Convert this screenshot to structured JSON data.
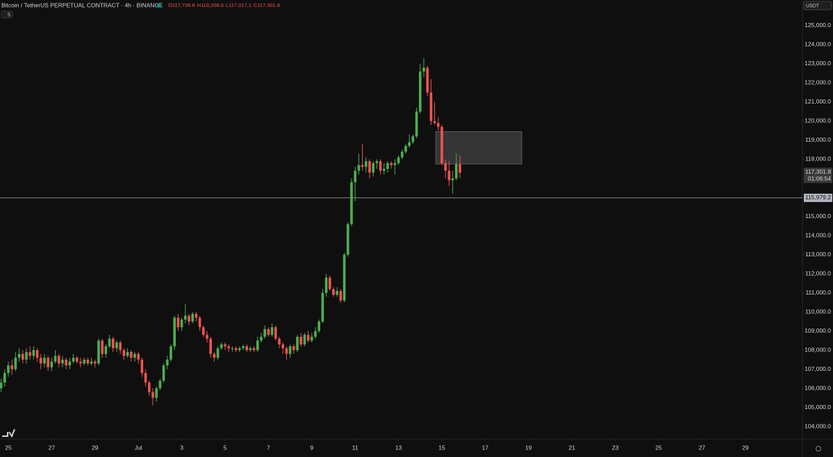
{
  "chart_data": {
    "type": "candlestick",
    "title": "Bitcoin / TetherUS PERPETUAL CONTRACT · 4h · BINANCE",
    "legend_values": [
      {
        "value": 117738.6,
        "label": "O117,738.6"
      },
      {
        "value": 118208.6,
        "label": "H118,208.6"
      },
      {
        "value": 117017.1,
        "label": "L117,017.1"
      },
      {
        "value": 117301.8,
        "label": "C117,301.8"
      }
    ],
    "indicator_count": 5,
    "currency": "USDT",
    "up_color": "#4caf50",
    "down_color": "#ef5350",
    "ylim": [
      103345,
      126346
    ],
    "xlim": [
      -0.3,
      221.8
    ],
    "yticks": [
      {
        "value": 104000,
        "label": "104,000.0"
      },
      {
        "value": 105000,
        "label": "105,000.0"
      },
      {
        "value": 106000,
        "label": "106,000.0"
      },
      {
        "value": 107000,
        "label": "107,000.0"
      },
      {
        "value": 108000,
        "label": "108,000.0"
      },
      {
        "value": 109000,
        "label": "109,000.0"
      },
      {
        "value": 110000,
        "label": "110,000.0"
      },
      {
        "value": 111000,
        "label": "111,000.0"
      },
      {
        "value": 112000,
        "label": "112,000.0"
      },
      {
        "value": 113000,
        "label": "113,000.0"
      },
      {
        "value": 114000,
        "label": "114,000.0"
      },
      {
        "value": 115000,
        "label": "115,000.0"
      },
      {
        "value": 116000,
        "label": "116,000.0"
      },
      {
        "value": 117000,
        "label": "117,000.0"
      },
      {
        "value": 118000,
        "label": "118,000.0"
      },
      {
        "value": 119000,
        "label": "119,000.0"
      },
      {
        "value": 120000,
        "label": "120,000.0"
      },
      {
        "value": 121000,
        "label": "121,000.0"
      },
      {
        "value": 122000,
        "label": "122,000.0"
      },
      {
        "value": 123000,
        "label": "123,000.0"
      },
      {
        "value": 124000,
        "label": "124,000.0"
      },
      {
        "value": 125000,
        "label": "125,000.0"
      }
    ],
    "xticks": [
      {
        "value": 2,
        "label": "25"
      },
      {
        "value": 14,
        "label": "27"
      },
      {
        "value": 26,
        "label": "29"
      },
      {
        "value": 38,
        "label": "Jul"
      },
      {
        "value": 50,
        "label": "3"
      },
      {
        "value": 62,
        "label": "5"
      },
      {
        "value": 74,
        "label": "7"
      },
      {
        "value": 86,
        "label": "9"
      },
      {
        "value": 98,
        "label": "11"
      },
      {
        "value": 110,
        "label": "13"
      },
      {
        "value": 122,
        "label": "15"
      },
      {
        "value": 134,
        "label": "17"
      },
      {
        "value": 146,
        "label": "19"
      },
      {
        "value": 158,
        "label": "21"
      },
      {
        "value": 170,
        "label": "23"
      },
      {
        "value": 182,
        "label": "25"
      },
      {
        "value": 194,
        "label": "27"
      },
      {
        "value": 206,
        "label": "29"
      }
    ],
    "last_price": {
      "value": 117301.8,
      "label": "117,301.8"
    },
    "countdown": "01:06:54",
    "hline": {
      "value": 115979.2,
      "label": "115,979.2"
    },
    "zone": {
      "y": [
        117750,
        119450
      ],
      "x": [
        120.3,
        144.1
      ]
    },
    "ohlc": [
      [
        106000,
        106500,
        105800,
        106300
      ],
      [
        106300,
        107000,
        106100,
        106800
      ],
      [
        106800,
        107400,
        106600,
        107200
      ],
      [
        107200,
        107500,
        106700,
        107000
      ],
      [
        107000,
        107900,
        106900,
        107600
      ],
      [
        107600,
        108100,
        107400,
        107800
      ],
      [
        107800,
        108000,
        107300,
        107500
      ],
      [
        107500,
        108100,
        107300,
        107900
      ],
      [
        107900,
        108200,
        107500,
        107700
      ],
      [
        107700,
        108200,
        107500,
        108000
      ],
      [
        108000,
        108100,
        107400,
        107600
      ],
      [
        107600,
        107800,
        107000,
        107300
      ],
      [
        107300,
        107800,
        107100,
        107600
      ],
      [
        107600,
        107700,
        106900,
        107100
      ],
      [
        107100,
        107600,
        106900,
        107400
      ],
      [
        107400,
        108000,
        107300,
        107700
      ],
      [
        107700,
        107800,
        107100,
        107300
      ],
      [
        107300,
        107700,
        107100,
        107500
      ],
      [
        107500,
        107600,
        107000,
        107200
      ],
      [
        107200,
        107600,
        107000,
        107400
      ],
      [
        107400,
        107800,
        107300,
        107600
      ],
      [
        107600,
        107700,
        107300,
        107400
      ],
      [
        107400,
        107600,
        107100,
        107300
      ],
      [
        107300,
        107600,
        107200,
        107500
      ],
      [
        107500,
        107600,
        107200,
        107300
      ],
      [
        107300,
        107600,
        107200,
        107400
      ],
      [
        107400,
        107500,
        107100,
        107300
      ],
      [
        107300,
        108600,
        107200,
        108500
      ],
      [
        108500,
        108600,
        107600,
        107800
      ],
      [
        107800,
        108300,
        107600,
        108200
      ],
      [
        108200,
        108800,
        108100,
        108600
      ],
      [
        108600,
        108700,
        107900,
        108100
      ],
      [
        108100,
        108500,
        107900,
        108400
      ],
      [
        108400,
        108500,
        107800,
        108000
      ],
      [
        108000,
        108100,
        107500,
        107700
      ],
      [
        107700,
        108100,
        107600,
        107900
      ],
      [
        107900,
        108000,
        107400,
        107600
      ],
      [
        107600,
        107900,
        107400,
        107800
      ],
      [
        107800,
        107900,
        107300,
        107500
      ],
      [
        107500,
        107600,
        106600,
        106800
      ],
      [
        106800,
        107000,
        106100,
        106300
      ],
      [
        106300,
        106400,
        105600,
        105800
      ],
      [
        105800,
        106000,
        105100,
        105500
      ],
      [
        105500,
        106100,
        105300,
        106000
      ],
      [
        106000,
        106500,
        105900,
        106400
      ],
      [
        106400,
        107300,
        106300,
        107200
      ],
      [
        107200,
        107700,
        107000,
        107500
      ],
      [
        107500,
        108300,
        107400,
        108200
      ],
      [
        108200,
        109800,
        108000,
        109700
      ],
      [
        109700,
        109900,
        109000,
        109200
      ],
      [
        109200,
        109700,
        109000,
        109600
      ],
      [
        109600,
        110400,
        109400,
        109800
      ],
      [
        109800,
        109900,
        109300,
        109500
      ],
      [
        109500,
        110000,
        109400,
        109900
      ],
      [
        109900,
        110000,
        109500,
        109700
      ],
      [
        109700,
        109800,
        109000,
        109200
      ],
      [
        109200,
        109300,
        108700,
        108800
      ],
      [
        108800,
        109000,
        108400,
        108600
      ],
      [
        108600,
        108700,
        107600,
        107800
      ],
      [
        107800,
        107900,
        107400,
        107600
      ],
      [
        107600,
        108200,
        107500,
        108100
      ],
      [
        108100,
        108400,
        108000,
        108300
      ],
      [
        108300,
        108400,
        108000,
        108200
      ],
      [
        108200,
        108300,
        107900,
        108100
      ],
      [
        108100,
        108200,
        107900,
        108100
      ],
      [
        108100,
        108200,
        107900,
        108000
      ],
      [
        108000,
        108200,
        107900,
        108100
      ],
      [
        108100,
        108300,
        108000,
        108200
      ],
      [
        108200,
        108300,
        107900,
        108000
      ],
      [
        108000,
        108200,
        107900,
        108100
      ],
      [
        108100,
        108200,
        107900,
        108000
      ],
      [
        108000,
        108700,
        107900,
        108500
      ],
      [
        108500,
        108900,
        108400,
        108700
      ],
      [
        108700,
        109300,
        108600,
        109100
      ],
      [
        109100,
        109200,
        108700,
        108800
      ],
      [
        108800,
        109400,
        108700,
        109200
      ],
      [
        109200,
        109300,
        108500,
        108600
      ],
      [
        108600,
        108700,
        108100,
        108300
      ],
      [
        108300,
        108400,
        107800,
        108100
      ],
      [
        108100,
        108200,
        107500,
        107800
      ],
      [
        107800,
        108300,
        107600,
        108200
      ],
      [
        108200,
        108300,
        107800,
        108000
      ],
      [
        108000,
        108800,
        107900,
        108700
      ],
      [
        108700,
        108900,
        108200,
        108300
      ],
      [
        108300,
        108900,
        108200,
        108800
      ],
      [
        108800,
        109000,
        108400,
        108500
      ],
      [
        108500,
        108900,
        108400,
        108700
      ],
      [
        108700,
        109200,
        108600,
        109000
      ],
      [
        109000,
        109600,
        108900,
        109500
      ],
      [
        109500,
        111200,
        109400,
        111000
      ],
      [
        111000,
        112000,
        110800,
        111800
      ],
      [
        111800,
        111900,
        111100,
        111200
      ],
      [
        111200,
        111300,
        110800,
        110900
      ],
      [
        110900,
        111300,
        110800,
        111100
      ],
      [
        111100,
        111200,
        110500,
        110600
      ],
      [
        110600,
        113100,
        110500,
        113000
      ],
      [
        113000,
        114700,
        112900,
        114600
      ],
      [
        114600,
        117000,
        114500,
        116800
      ],
      [
        116800,
        117600,
        115800,
        117400
      ],
      [
        117400,
        118300,
        117200,
        117700
      ],
      [
        117700,
        118800,
        117400,
        117600
      ],
      [
        117600,
        118100,
        117300,
        117900
      ],
      [
        117900,
        118000,
        117000,
        117300
      ],
      [
        117300,
        117900,
        117100,
        117800
      ],
      [
        117800,
        118000,
        117500,
        117900
      ],
      [
        117900,
        118000,
        117200,
        117400
      ],
      [
        117400,
        117800,
        117200,
        117500
      ],
      [
        117500,
        117900,
        117300,
        117800
      ],
      [
        117800,
        117900,
        117500,
        117700
      ],
      [
        117700,
        118000,
        117200,
        117800
      ],
      [
        117800,
        118200,
        117700,
        118100
      ],
      [
        118100,
        118500,
        118000,
        118400
      ],
      [
        118400,
        118800,
        118300,
        118700
      ],
      [
        118700,
        119300,
        118600,
        118900
      ],
      [
        118900,
        119300,
        118800,
        119200
      ],
      [
        119200,
        120700,
        119100,
        120500
      ],
      [
        120500,
        123000,
        120400,
        122600
      ],
      [
        122600,
        123300,
        122300,
        122800
      ],
      [
        122800,
        122900,
        121300,
        121500
      ],
      [
        121500,
        122200,
        119800,
        120000
      ],
      [
        120000,
        121000,
        119800,
        119900
      ],
      [
        119900,
        120200,
        119500,
        119700
      ],
      [
        119700,
        119800,
        117700,
        117800
      ],
      [
        117800,
        118000,
        117000,
        117400
      ],
      [
        117400,
        117900,
        116600,
        116900
      ],
      [
        116900,
        117400,
        116200,
        117000
      ],
      [
        117000,
        118300,
        116900,
        117738.6
      ],
      [
        117738.6,
        118208.6,
        117017.1,
        117301.8
      ]
    ]
  }
}
